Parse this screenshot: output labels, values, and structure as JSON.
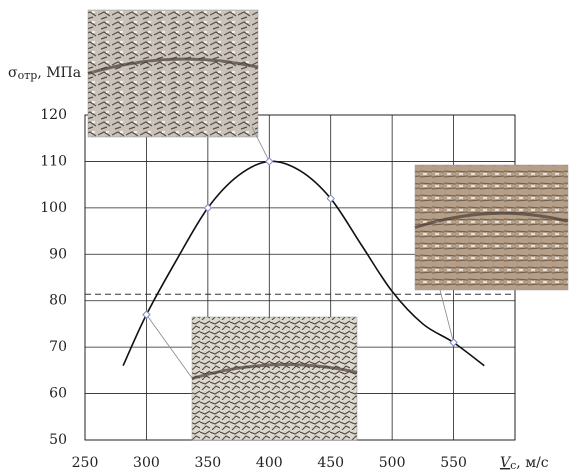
{
  "chart_data": {
    "type": "line",
    "y_label": {
      "symbol": "σ",
      "subscript": "отр",
      "unit": ", МПа"
    },
    "x_label": {
      "symbol": "V",
      "subscript": "с",
      "unit": ",  м/с"
    },
    "xlim": [
      250,
      600
    ],
    "xticks": [
      250,
      300,
      350,
      400,
      450,
      500,
      550
    ],
    "ylim": [
      50,
      120
    ],
    "yticks": [
      50,
      60,
      70,
      80,
      90,
      100,
      110,
      120
    ],
    "grid": true,
    "reference_line": 81.4,
    "curve": {
      "color": "#111",
      "x": [
        281,
        300,
        325,
        350,
        375,
        400,
        425,
        450,
        475,
        500,
        525,
        550,
        575
      ],
      "values": [
        66,
        77,
        89,
        100,
        107,
        110,
        108,
        102,
        92,
        82,
        75,
        71,
        66
      ]
    },
    "points": {
      "color": "#7b86c8",
      "x": [
        300,
        350,
        400,
        450,
        550
      ],
      "values": [
        77,
        100,
        110,
        102,
        71
      ]
    }
  }
}
